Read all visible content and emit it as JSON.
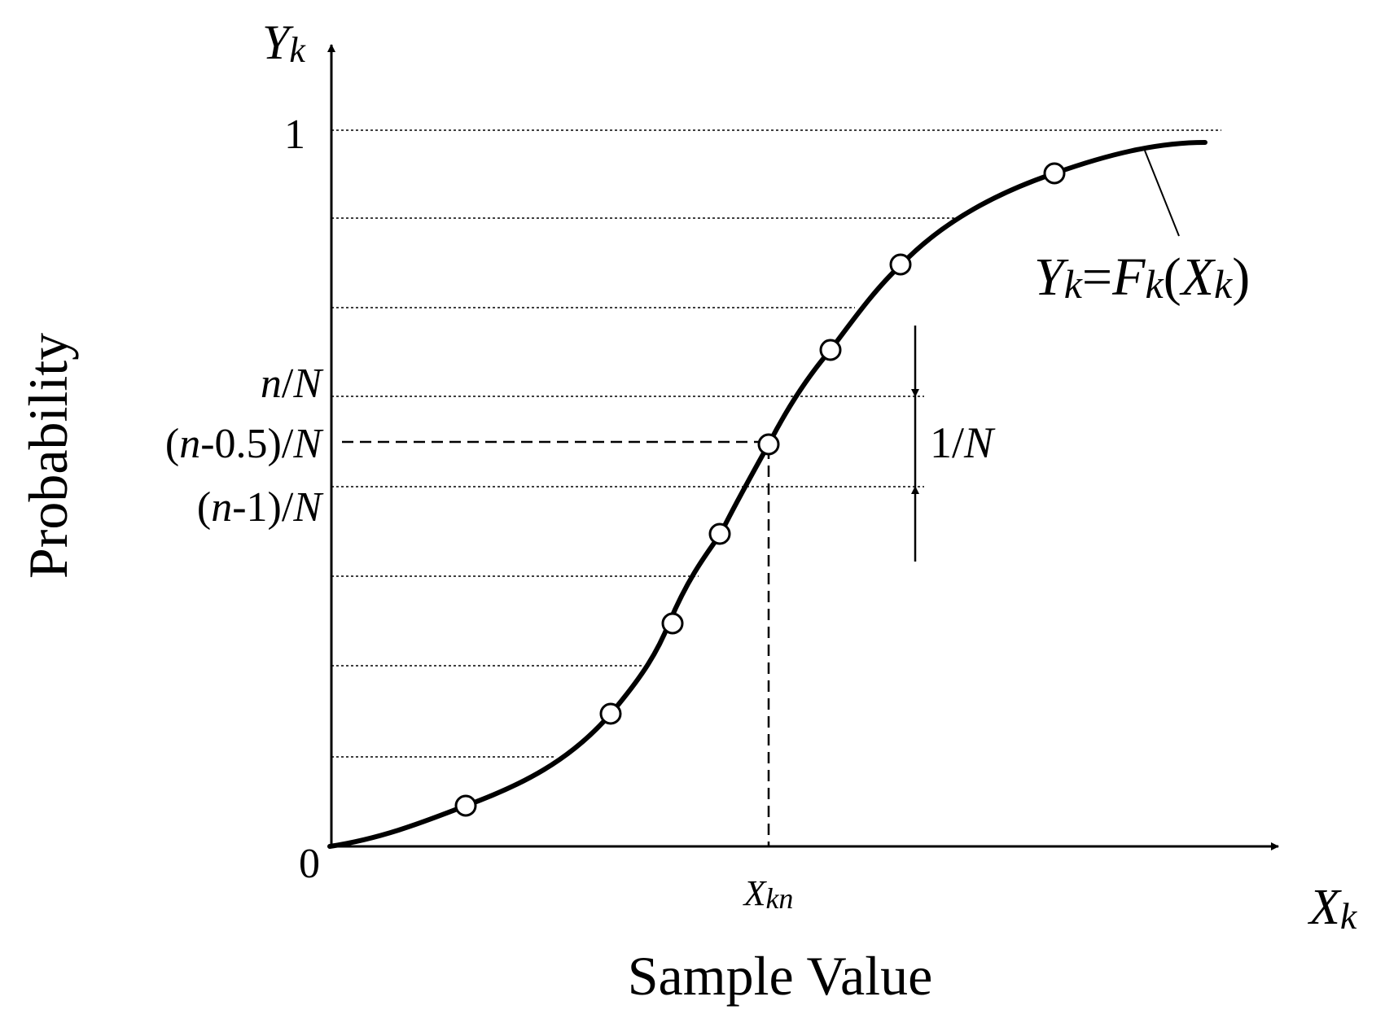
{
  "figure": {
    "type": "line",
    "curve_label": {
      "y": "Y",
      "y_sub": "k",
      "eq": "=",
      "f": "F",
      "f_sub": "k",
      "paren_open": "(",
      "x": "X",
      "x_sub": "k",
      "paren_close": ")"
    },
    "y_axis": {
      "symbol": "Y",
      "symbol_sub": "k",
      "title": "Probability",
      "ticks": {
        "one": "1",
        "zero": "0",
        "nN": {
          "n": "n",
          "rest": "/",
          "N": "N"
        },
        "mid": {
          "open": "(",
          "n": "n",
          "rest": "-0.5)/",
          "N": "N"
        },
        "prev": {
          "open": "(",
          "n": "n",
          "rest": "-1)/",
          "N": "N"
        }
      }
    },
    "x_axis": {
      "symbol": "X",
      "symbol_sub": "k",
      "title": "Sample Value",
      "tick_kn": {
        "x": "X",
        "sub": "kn"
      }
    },
    "interval_label": {
      "one": "1/",
      "N": "N"
    }
  },
  "chart_data": {
    "type": "line",
    "description_free": true,
    "levels": 8,
    "horizontal_gridlines_y": [
      0.125,
      0.25,
      0.375,
      0.5,
      0.625,
      0.75,
      0.875,
      1.0
    ],
    "highlight_level": 0.5625,
    "sample_points_y": [
      0.0556,
      0.1806,
      0.3056,
      0.4306,
      0.5625,
      0.6944,
      0.8194,
      0.9444
    ],
    "curve": "sigmoid cdf",
    "xlim": [
      0,
      1
    ],
    "ylim": [
      0,
      1
    ],
    "grid": "dotted"
  }
}
